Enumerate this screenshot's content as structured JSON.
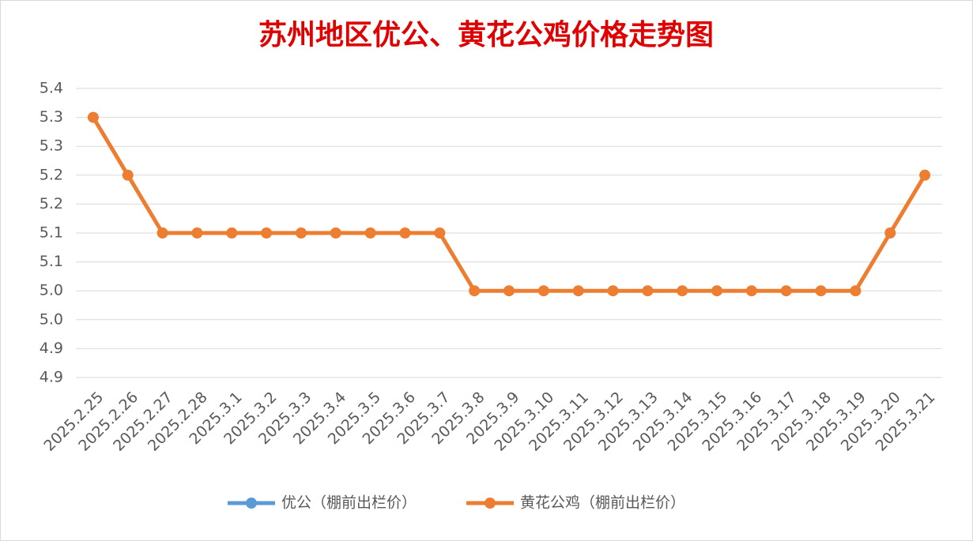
{
  "chart_data": {
    "type": "line",
    "title": "苏州地区优公、黄花公鸡价格走势图",
    "categories": [
      "2025.2.25",
      "2025.2.26",
      "2025.2.27",
      "2025.2.28",
      "2025.3.1",
      "2025.3.2",
      "2025.3.3",
      "2025.3.4",
      "2025.3.5",
      "2025.3.6",
      "2025.3.7",
      "2025.3.8",
      "2025.3.9",
      "2025.3.10",
      "2025.3.11",
      "2025.3.12",
      "2025.3.13",
      "2025.3.14",
      "2025.3.15",
      "2025.3.16",
      "2025.3.17",
      "2025.3.18",
      "2025.3.19",
      "2025.3.20",
      "2025.3.21"
    ],
    "series": [
      {
        "name": "优公（棚前出栏价）",
        "color": "#5b9bd5",
        "values": [
          null,
          null,
          null,
          null,
          null,
          null,
          null,
          null,
          null,
          null,
          null,
          null,
          null,
          null,
          null,
          null,
          null,
          null,
          null,
          null,
          null,
          null,
          null,
          null,
          null
        ]
      },
      {
        "name": "黄花公鸡（棚前出栏价）",
        "color": "#ed7d31",
        "values": [
          5.3,
          5.2,
          5.1,
          5.1,
          5.1,
          5.1,
          5.1,
          5.1,
          5.1,
          5.1,
          5.1,
          5.0,
          5.0,
          5.0,
          5.0,
          5.0,
          5.0,
          5.0,
          5.0,
          5.0,
          5.0,
          5.0,
          5.0,
          5.1,
          5.2
        ]
      }
    ],
    "ylim": [
      4.85,
      5.35
    ],
    "yticks": [
      {
        "value": 4.85,
        "label": "4.9"
      },
      {
        "value": 4.9,
        "label": "4.9"
      },
      {
        "value": 4.95,
        "label": "5.0"
      },
      {
        "value": 5.0,
        "label": "5.0"
      },
      {
        "value": 5.05,
        "label": "5.1"
      },
      {
        "value": 5.1,
        "label": "5.1"
      },
      {
        "value": 5.15,
        "label": "5.2"
      },
      {
        "value": 5.2,
        "label": "5.2"
      },
      {
        "value": 5.25,
        "label": "5.3"
      },
      {
        "value": 5.3,
        "label": "5.3"
      },
      {
        "value": 5.35,
        "label": "5.4"
      }
    ],
    "grid": true,
    "legend": "bottom"
  }
}
